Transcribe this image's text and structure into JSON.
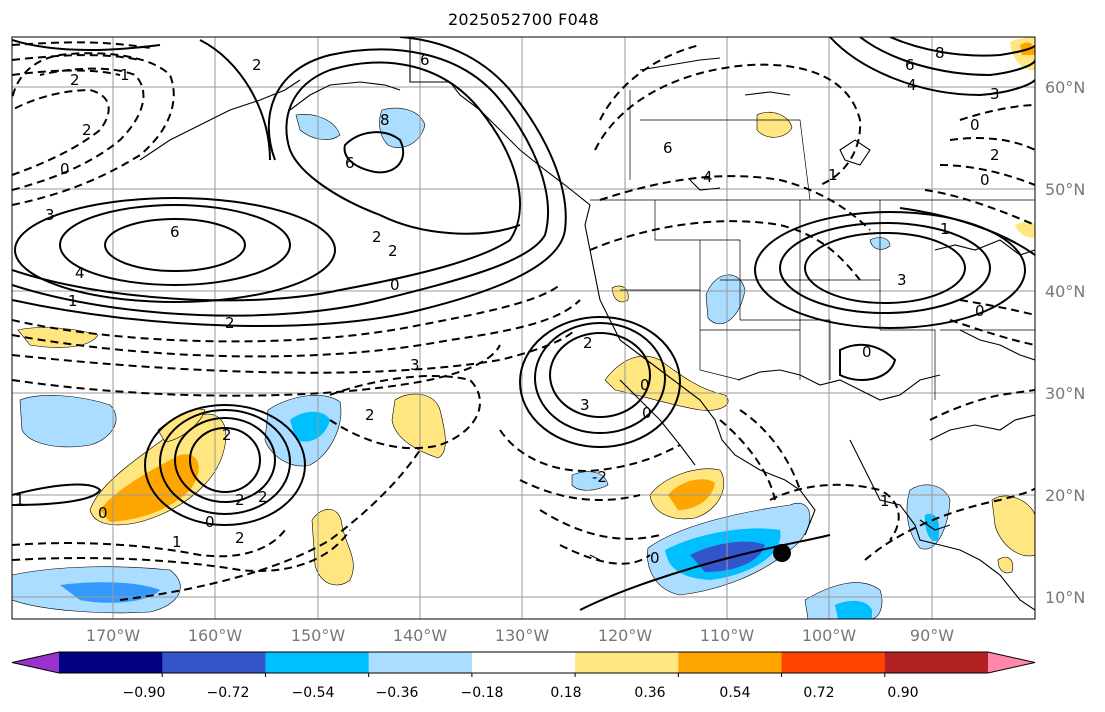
{
  "title": "2025052700 F048",
  "map": {
    "lon_labels": [
      "170°W",
      "160°W",
      "150°W",
      "140°W",
      "130°W",
      "120°W",
      "110°W",
      "100°W",
      "90°W"
    ],
    "lat_labels": [
      "60°N",
      "50°N",
      "40°N",
      "30°N",
      "20°N",
      "10°N"
    ],
    "contour_labels": [
      "2",
      "1",
      "2",
      "2",
      "0",
      "6",
      "8",
      "6",
      "3",
      "6",
      "4",
      "1",
      "2",
      "2",
      "0",
      "2",
      "3",
      "2",
      "3",
      "2",
      "0",
      "2",
      "0",
      "1",
      "0",
      "2",
      "2",
      "1",
      "-2",
      "0",
      "1",
      "4",
      "6",
      "8",
      "6",
      "4",
      "3",
      "0",
      "2",
      "1",
      "0",
      "3",
      "0",
      "1",
      "2",
      "0",
      "0"
    ]
  },
  "colorbar": {
    "ticks": [
      "−0.90",
      "−0.72",
      "−0.54",
      "−0.36",
      "−0.18",
      "0.18",
      "0.36",
      "0.54",
      "0.72",
      "0.90"
    ],
    "colors": [
      "#9933cc",
      "#000080",
      "#3355cc",
      "#00bfff",
      "#aaddff",
      "#ffffff",
      "#ffe680",
      "#ffa500",
      "#ff4500",
      "#b22222",
      "#ff88aa"
    ]
  }
}
